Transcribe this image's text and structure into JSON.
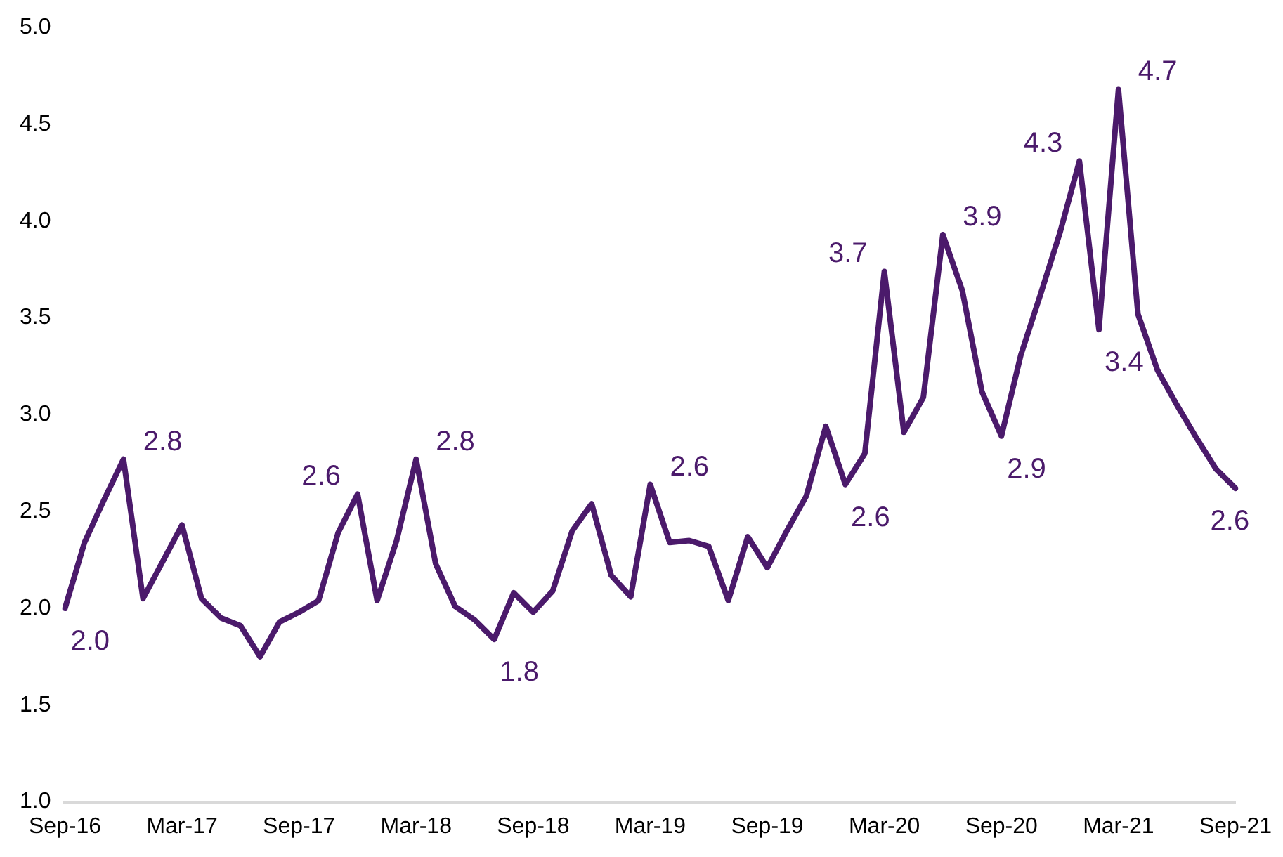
{
  "chart_data": {
    "type": "line",
    "categories": [
      "Sep-16",
      null,
      null,
      null,
      null,
      null,
      "Mar-17",
      null,
      null,
      null,
      null,
      null,
      "Sep-17",
      null,
      null,
      null,
      null,
      null,
      "Mar-18",
      null,
      null,
      null,
      null,
      null,
      "Sep-18",
      null,
      null,
      null,
      null,
      null,
      "Mar-19",
      null,
      null,
      null,
      null,
      null,
      "Sep-19",
      null,
      null,
      null,
      null,
      null,
      "Mar-20",
      null,
      null,
      null,
      null,
      null,
      "Sep-20",
      null,
      null,
      null,
      null,
      null,
      "Mar-21",
      null,
      null,
      null,
      null,
      null,
      "Sep-21"
    ],
    "series": [
      {
        "color": "#4b1a6b",
        "values": [
          2.0,
          2.34,
          2.56,
          2.77,
          2.05,
          2.24,
          2.43,
          2.05,
          1.95,
          1.91,
          1.75,
          1.93,
          1.98,
          2.04,
          2.39,
          2.59,
          2.04,
          2.35,
          2.77,
          2.23,
          2.01,
          1.94,
          1.84,
          2.08,
          1.98,
          2.09,
          2.4,
          2.54,
          2.17,
          2.06,
          2.64,
          2.34,
          2.35,
          2.32,
          2.04,
          2.37,
          2.21,
          2.4,
          2.58,
          2.94,
          2.64,
          2.8,
          3.74,
          2.91,
          3.09,
          3.93,
          3.64,
          3.12,
          2.89,
          3.31,
          3.62,
          3.94,
          4.31,
          3.44,
          4.68,
          3.52,
          3.23,
          3.05,
          2.88,
          2.72,
          2.62
        ],
        "value_labels": [
          "2.0",
          null,
          null,
          "2.8",
          null,
          null,
          null,
          null,
          null,
          null,
          null,
          null,
          null,
          null,
          null,
          "2.6",
          null,
          null,
          "2.8",
          null,
          null,
          null,
          "1.8",
          null,
          null,
          null,
          null,
          null,
          null,
          null,
          "2.6",
          null,
          null,
          null,
          null,
          null,
          null,
          null,
          null,
          null,
          "2.6",
          null,
          "3.7",
          null,
          null,
          "3.9",
          null,
          null,
          "2.9",
          null,
          null,
          null,
          "4.3",
          "3.4",
          "4.7",
          null,
          null,
          null,
          null,
          null,
          "2.6"
        ]
      }
    ],
    "ylim": [
      1.0,
      5.0
    ],
    "yticks": [
      {
        "value": 1,
        "label": "1.0"
      },
      {
        "value": 1.5,
        "label": "1.5"
      },
      {
        "value": 2,
        "label": "2.0"
      },
      {
        "value": 2.5,
        "label": "2.5"
      },
      {
        "value": 3,
        "label": "3.0"
      },
      {
        "value": 3.5,
        "label": "3.5"
      },
      {
        "value": 4,
        "label": "4.0"
      },
      {
        "value": 4.5,
        "label": "4.5"
      },
      {
        "value": 5,
        "label": "5.0"
      }
    ],
    "grid": false,
    "legend": false,
    "marker": "none",
    "line_style": "solid"
  }
}
